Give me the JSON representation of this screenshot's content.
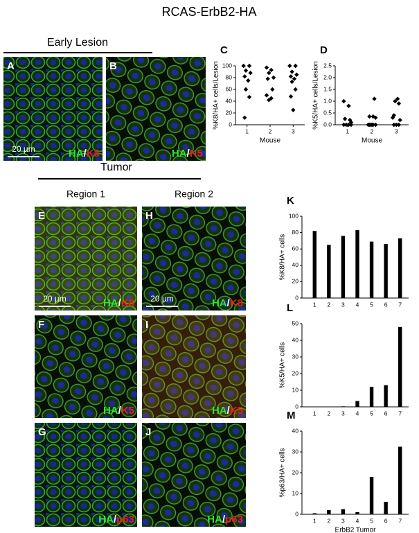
{
  "title": "RCAS-ErbB2-HA",
  "sections": {
    "early_lesion": "Early Lesion",
    "tumor": "Tumor",
    "region_1": "Region 1",
    "region_2": "Region 2"
  },
  "images": [
    {
      "panel": "A",
      "stain_1": "HA",
      "separator": "/",
      "stain_2": "K8",
      "scale_bar": "20 µm"
    },
    {
      "panel": "B",
      "stain_1": "HA",
      "separator": "/",
      "stain_2": "K5"
    },
    {
      "panel": "E",
      "stain_1": "HA",
      "separator": "/",
      "stain_2": "K8",
      "scale_bar": "20 µm"
    },
    {
      "panel": "F",
      "stain_1": "HA",
      "separator": "/",
      "stain_2": "K5"
    },
    {
      "panel": "G",
      "stain_1": "HA",
      "separator": "/",
      "stain_2": "p63"
    },
    {
      "panel": "H",
      "stain_1": "HA",
      "separator": "/",
      "stain_2": "K8",
      "scale_bar": "20 µm"
    },
    {
      "panel": "I",
      "stain_1": "HA",
      "separator": "/",
      "stain_2": "K5"
    },
    {
      "panel": "J",
      "stain_1": "HA",
      "separator": "/",
      "stain_2": "p63"
    }
  ],
  "chart_data": [
    {
      "type": "scatter",
      "panel": "C",
      "ylabel": "%K8/HA+ cells/Lesion",
      "xlabel": "Mouse",
      "color": "#000000",
      "x": [
        0.85,
        1.1,
        0.95,
        1.15,
        0.9,
        1.05,
        0.95,
        1.1,
        0.9,
        1.85,
        2.05,
        1.95,
        2.15,
        1.9,
        2.1,
        1.85,
        2.05,
        1.95,
        2.85,
        3.1,
        2.95,
        3.15,
        2.9,
        3.05,
        2.95,
        3.1,
        2.9,
        3.0
      ],
      "values": [
        100,
        100,
        92,
        88,
        82,
        75,
        60,
        47,
        12,
        97,
        93,
        88,
        80,
        78,
        60,
        50,
        45,
        42,
        100,
        100,
        90,
        85,
        82,
        78,
        73,
        60,
        48,
        25
      ],
      "xlim": [
        0.5,
        3.5
      ],
      "xticks": [
        1,
        2,
        3
      ],
      "ylim": [
        0,
        100
      ],
      "yticks": [
        0,
        20,
        40,
        60,
        80,
        100
      ]
    },
    {
      "type": "scatter",
      "panel": "D",
      "ylabel": "%K5/HA+ cells/Lesion",
      "xlabel": "Mouse",
      "color": "#000000",
      "x": [
        0.85,
        1.05,
        0.9,
        1.1,
        1.15,
        0.85,
        0.95,
        1.05,
        1.15,
        2.1,
        1.9,
        2.05,
        2.15,
        1.85,
        1.95,
        2.05,
        2.15,
        1.9,
        2.0,
        3.05,
        2.95,
        3.1,
        2.9,
        2.85,
        3.15,
        2.9,
        3.0,
        3.1
      ],
      "values": [
        1.0,
        0.8,
        0.25,
        0.2,
        0.1,
        0,
        0,
        0,
        0,
        1.1,
        0.35,
        0.35,
        0.3,
        0,
        0,
        0,
        0,
        0,
        0,
        1.1,
        1.0,
        0.9,
        0.4,
        0.3,
        0.2,
        0,
        0,
        0
      ],
      "xlim": [
        0.5,
        3.5
      ],
      "xticks": [
        1,
        2,
        3
      ],
      "ylim": [
        0,
        2.5
      ],
      "yticks": [
        {
          "value": 0,
          "label": "0.0"
        },
        0.5,
        {
          "value": 1,
          "label": "1.0"
        },
        1.5,
        {
          "value": 2,
          "label": "2.0"
        },
        2.5
      ]
    },
    {
      "type": "bar",
      "panel": "K",
      "ylabel": "%K8/HA+ cells",
      "color": "#000000",
      "categories": [
        "1",
        "2",
        "3",
        "4",
        "5",
        "6",
        "7"
      ],
      "values": [
        82,
        65,
        76,
        83,
        69,
        66,
        73
      ],
      "ylim": [
        0,
        100
      ],
      "yticks": [
        0,
        20,
        40,
        60,
        80,
        100
      ]
    },
    {
      "type": "bar",
      "panel": "L",
      "ylabel": "%K5/HA+ cells",
      "color": "#000000",
      "categories": [
        "1",
        "2",
        "3",
        "4",
        "5",
        "6",
        "7"
      ],
      "values": [
        0,
        0.2,
        0.3,
        3.5,
        12,
        13,
        48
      ],
      "ylim": [
        0,
        50
      ],
      "yticks": [
        0,
        10,
        20,
        30,
        40,
        50
      ]
    },
    {
      "type": "bar",
      "panel": "M",
      "ylabel": "%p63/HA+ cells",
      "xlabel": "ErbB2 Tumor",
      "color": "#000000",
      "categories": [
        "1",
        "2",
        "3",
        "4",
        "5",
        "6",
        "7"
      ],
      "values": [
        0.5,
        2,
        2.5,
        1,
        18,
        6,
        32.5
      ],
      "ylim": [
        0,
        40
      ],
      "yticks": [
        0,
        10,
        20,
        30,
        40
      ]
    }
  ]
}
